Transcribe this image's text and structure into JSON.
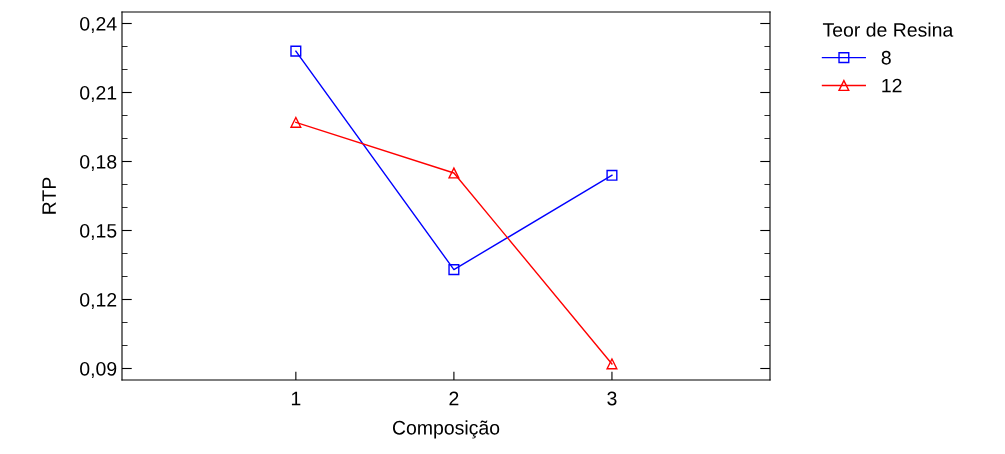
{
  "chart_data": {
    "type": "line",
    "xlabel": "Composição",
    "ylabel": "RTP",
    "legend_title": "Teor de Resina",
    "legend": "top right",
    "x": [
      1,
      2,
      3
    ],
    "series": [
      {
        "name": "8",
        "color": "#0000ff",
        "marker": "square",
        "values": [
          0.228,
          0.133,
          0.174
        ]
      },
      {
        "name": "12",
        "color": "#ff0000",
        "marker": "triangle",
        "values": [
          0.197,
          0.175,
          0.092
        ]
      }
    ],
    "xlim": [
      -0.1,
      4
    ],
    "xticks": [
      1,
      2,
      3
    ],
    "ylim": [
      0.085,
      0.245
    ],
    "yticks": [
      {
        "value": 0.09,
        "label": "0,09"
      },
      {
        "value": 0.12,
        "label": "0,12"
      },
      {
        "value": 0.15,
        "label": "0,15"
      },
      {
        "value": 0.18,
        "label": "0,18"
      },
      {
        "value": 0.21,
        "label": "0,21"
      },
      {
        "value": 0.24,
        "label": "0,24"
      }
    ],
    "grid": false,
    "line_style": "solid"
  }
}
